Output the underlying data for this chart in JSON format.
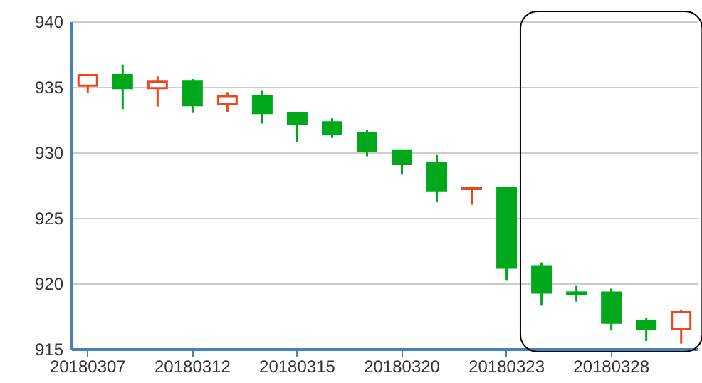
{
  "chart_data": {
    "type": "candlestick",
    "categories": [
      "20180307",
      null,
      null,
      "20180312",
      null,
      null,
      "20180315",
      null,
      null,
      "20180320",
      null,
      null,
      "20180323",
      null,
      null,
      "20180328",
      null,
      null
    ],
    "ohlc": [
      [
        935.1,
        935.9,
        934.5,
        935.9
      ],
      [
        935.9,
        936.7,
        933.3,
        934.9
      ],
      [
        934.9,
        935.8,
        933.5,
        935.4
      ],
      [
        935.4,
        935.6,
        933.0,
        933.6
      ],
      [
        933.7,
        934.6,
        933.1,
        934.3
      ],
      [
        934.3,
        934.7,
        932.2,
        933.0
      ],
      [
        933.0,
        933.1,
        930.8,
        932.2
      ],
      [
        932.3,
        932.6,
        931.1,
        931.4
      ],
      [
        931.5,
        931.7,
        929.7,
        930.1
      ],
      [
        930.1,
        930.1,
        928.3,
        929.1
      ],
      [
        929.2,
        929.8,
        926.2,
        927.1
      ],
      [
        927.2,
        927.3,
        926.0,
        927.3
      ],
      [
        927.3,
        927.3,
        920.2,
        921.2
      ],
      [
        921.3,
        921.6,
        918.3,
        919.3
      ],
      [
        919.3,
        919.8,
        918.6,
        919.2
      ],
      [
        919.3,
        919.6,
        916.4,
        917.0
      ],
      [
        917.1,
        917.4,
        915.6,
        916.5
      ],
      [
        916.5,
        918.0,
        915.4,
        917.8
      ]
    ],
    "colors": [
      "#e8491d",
      "#00a81c",
      "#e8491d",
      "#00a81c",
      "#e8491d",
      "#00a81c",
      "#00a81c",
      "#00a81c",
      "#00a81c",
      "#00a81c",
      "#00a81c",
      "#e8491d",
      "#00a81c",
      "#00a81c",
      "#00a81c",
      "#00a81c",
      "#00a81c",
      "#e8491d"
    ],
    "ylim": [
      915,
      940
    ],
    "yticks": [
      915,
      920,
      925,
      930,
      935,
      940
    ],
    "grid": "y"
  }
}
